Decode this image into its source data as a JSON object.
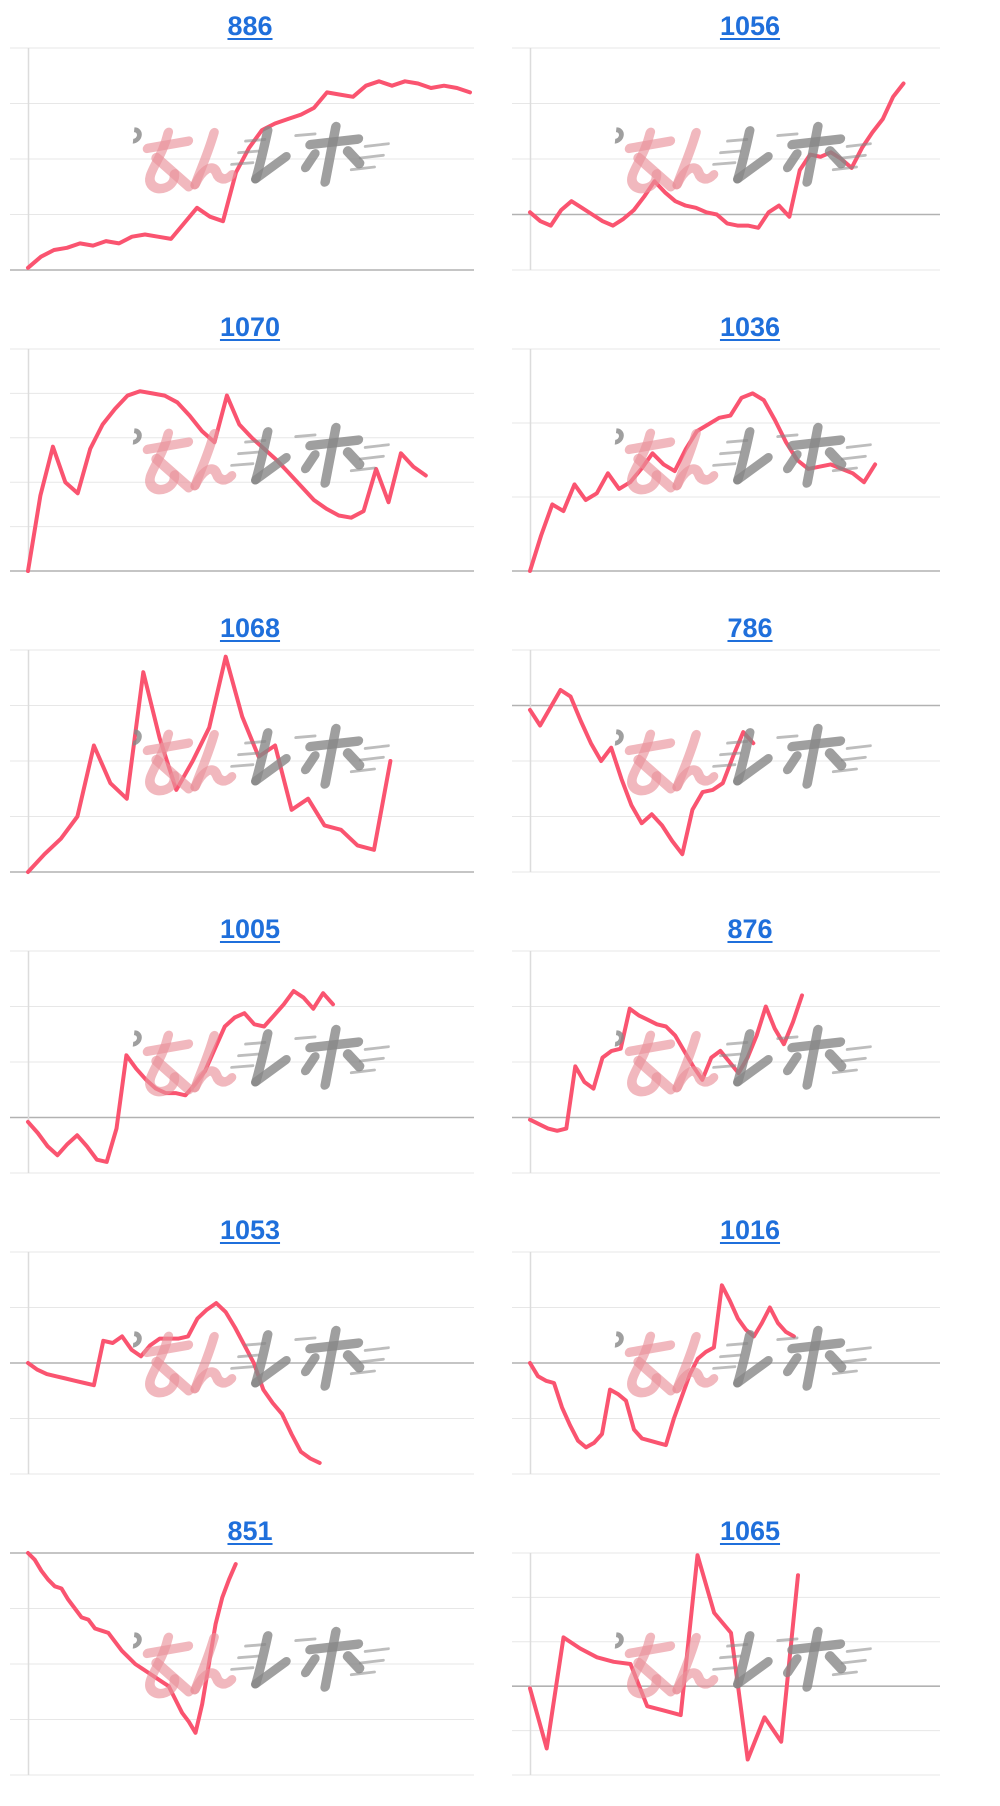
{
  "page": {
    "background": "#ffffff",
    "description": "Grid of 12 small rating-history line charts, each titled by a blue underlined number link"
  },
  "style": {
    "line_color": "#fa5470",
    "title_link_color": "#1f6fdb",
    "gridline_color": "#e7e7e7",
    "reference_line_color": "#b2b2b2",
    "axis_line_color": "#dcdcdc"
  },
  "watermark": {
    "text_pink": "みん",
    "text_gray": "レポ",
    "pink_color": "rgba(234,146,155,0.65)",
    "gray_color": "rgba(135,135,135,0.8)"
  },
  "chart_data": [
    {
      "type": "line",
      "title": "886",
      "ylim": [
        0,
        100
      ],
      "gridline_values": [
        0,
        25,
        50,
        75,
        100
      ],
      "ref_value": 0,
      "x_extent_fraction": 1.0,
      "values": [
        1,
        6,
        9,
        10,
        12,
        11,
        13,
        12,
        15,
        16,
        15,
        14,
        21,
        28,
        24,
        22,
        44,
        55,
        63,
        66,
        68,
        70,
        73,
        80,
        79,
        78,
        83,
        85,
        83,
        85,
        84,
        82,
        83,
        82,
        80
      ]
    },
    {
      "type": "line",
      "title": "1056",
      "ylim": [
        0,
        100
      ],
      "gridline_values": [
        0,
        25,
        50,
        75,
        100
      ],
      "ref_value": 25,
      "x_extent_fraction": 0.92,
      "values": [
        26,
        22,
        20,
        27,
        31,
        28,
        25,
        22,
        20,
        23,
        27,
        33,
        40,
        35,
        31,
        29,
        28,
        26,
        25,
        21,
        20,
        20,
        19,
        26,
        29,
        24,
        45,
        52,
        51,
        53,
        50,
        46,
        55,
        62,
        68,
        78,
        84
      ]
    },
    {
      "type": "line",
      "title": "1070",
      "ylim": [
        0,
        100
      ],
      "gridline_values": [
        0,
        20,
        40,
        60,
        80,
        100
      ],
      "ref_value": 0,
      "x_extent_fraction": 0.9,
      "values": [
        0,
        34,
        56,
        40,
        35,
        55,
        66,
        73,
        79,
        81,
        80,
        79,
        76,
        70,
        63,
        58,
        79,
        66,
        60,
        55,
        50,
        44,
        38,
        32,
        28,
        25,
        24,
        27,
        46,
        31,
        53,
        47,
        43
      ]
    },
    {
      "type": "line",
      "title": "1036",
      "ylim": [
        0,
        100
      ],
      "gridline_values": [
        0,
        33.33,
        66.67,
        100
      ],
      "ref_value": 0,
      "x_extent_fraction": 0.85,
      "values": [
        0,
        16,
        30,
        27,
        39,
        32,
        35,
        44,
        37,
        40,
        46,
        53,
        48,
        45,
        55,
        63,
        66,
        69,
        70,
        78,
        80,
        77,
        68,
        58,
        50,
        46,
        47,
        48,
        46,
        44,
        40,
        48
      ]
    },
    {
      "type": "line",
      "title": "1068",
      "ylim": [
        0,
        100
      ],
      "gridline_values": [
        0,
        25,
        50,
        75,
        100
      ],
      "ref_value": 0,
      "x_extent_fraction": 0.82,
      "values": [
        0,
        8,
        15,
        25,
        57,
        40,
        33,
        90,
        60,
        37,
        50,
        65,
        97,
        70,
        52,
        57,
        28,
        33,
        21,
        19,
        12,
        10,
        50
      ]
    },
    {
      "type": "line",
      "title": "786",
      "ylim": [
        0,
        100
      ],
      "gridline_values": [
        0,
        25,
        50,
        75,
        100
      ],
      "ref_value": 75,
      "x_extent_fraction": 0.55,
      "values": [
        73,
        66,
        74,
        82,
        79,
        68,
        58,
        50,
        56,
        42,
        30,
        22,
        26,
        21,
        14,
        8,
        28,
        36,
        37,
        40,
        52,
        63,
        58
      ]
    },
    {
      "type": "line",
      "title": "1005",
      "ylim": [
        0,
        100
      ],
      "gridline_values": [
        0,
        25,
        50,
        75,
        100
      ],
      "ref_value": 25,
      "x_extent_fraction": 0.69,
      "values": [
        23,
        18,
        12,
        8,
        13,
        17,
        12,
        6,
        5,
        20,
        53,
        47,
        42,
        38,
        36,
        36,
        35,
        40,
        46,
        56,
        66,
        70,
        72,
        67,
        66,
        71,
        76,
        82,
        79,
        74,
        81,
        76
      ]
    },
    {
      "type": "line",
      "title": "876",
      "ylim": [
        0,
        100
      ],
      "gridline_values": [
        0,
        25,
        50,
        75,
        100
      ],
      "ref_value": 25,
      "x_extent_fraction": 0.67,
      "values": [
        24,
        22,
        20,
        19,
        20,
        48,
        41,
        38,
        52,
        55,
        56,
        74,
        71,
        69,
        67,
        66,
        62,
        55,
        48,
        42,
        52,
        55,
        50,
        45,
        52,
        62,
        75,
        65,
        58,
        68,
        80
      ]
    },
    {
      "type": "line",
      "title": "1053",
      "ylim": [
        0,
        100
      ],
      "gridline_values": [
        0,
        25,
        50,
        75,
        100
      ],
      "ref_value": 50,
      "x_extent_fraction": 0.66,
      "values": [
        50,
        47,
        45,
        44,
        43,
        42,
        41,
        40,
        60,
        59,
        62,
        56,
        53,
        58,
        61,
        61,
        61,
        62,
        70,
        74,
        77,
        73,
        66,
        58,
        50,
        38,
        32,
        27,
        18,
        10,
        7,
        5
      ]
    },
    {
      "type": "line",
      "title": "1016",
      "ylim": [
        0,
        100
      ],
      "gridline_values": [
        0,
        25,
        50,
        75,
        100
      ],
      "ref_value": 50,
      "x_extent_fraction": 0.65,
      "values": [
        50,
        44,
        42,
        41,
        30,
        22,
        15,
        12,
        14,
        18,
        38,
        36,
        33,
        20,
        16,
        15,
        14,
        13,
        25,
        35,
        45,
        52,
        55,
        57,
        85,
        78,
        70,
        65,
        62,
        68,
        75,
        68,
        64,
        62
      ]
    },
    {
      "type": "line",
      "title": "851",
      "ylim": [
        0,
        100
      ],
      "gridline_values": [
        0,
        25,
        50,
        75,
        100
      ],
      "ref_value": 100,
      "x_extent_fraction": 0.47,
      "values": [
        100,
        97,
        92,
        88,
        85,
        84,
        79,
        75,
        71,
        70,
        66,
        65,
        64,
        60,
        56,
        53,
        50,
        48,
        46,
        44,
        42,
        40,
        34,
        28,
        24,
        19,
        32,
        50,
        68,
        80,
        88,
        95
      ]
    },
    {
      "type": "line",
      "title": "1065",
      "ylim": [
        0,
        100
      ],
      "gridline_values": [
        0,
        20,
        40,
        60,
        80,
        100
      ],
      "ref_value": 40,
      "x_extent_fraction": 0.66,
      "values": [
        39,
        12,
        62,
        57,
        53,
        51,
        50,
        31,
        29,
        27,
        99,
        73,
        64,
        7,
        26,
        15,
        90
      ]
    }
  ]
}
